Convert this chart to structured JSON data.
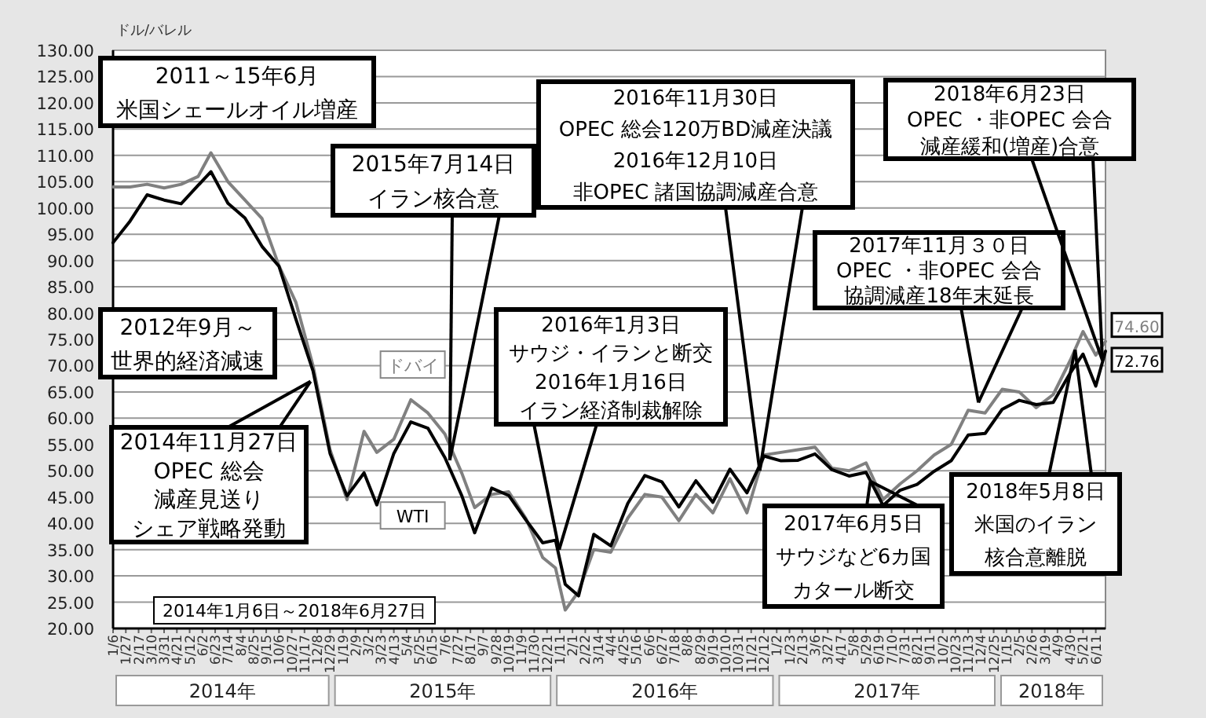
{
  "chart_data": {
    "type": "line",
    "ylabel": "ドル/バレル",
    "grid": "y",
    "x": [
      "2014-01-06",
      "2014-02-03",
      "2014-03-03",
      "2014-03-31",
      "2014-04-28",
      "2014-05-26",
      "2014-06-16",
      "2014-07-14",
      "2014-08-11",
      "2014-09-08",
      "2014-10-06",
      "2014-11-03",
      "2014-12-01",
      "2014-12-29",
      "2015-01-26",
      "2015-02-23",
      "2015-03-16",
      "2015-04-13",
      "2015-05-11",
      "2015-06-08",
      "2015-07-06",
      "2015-08-03",
      "2015-08-24",
      "2015-09-21",
      "2015-10-19",
      "2015-11-16",
      "2015-12-14",
      "2016-01-04",
      "2016-01-20",
      "2016-02-11",
      "2016-03-07",
      "2016-04-04",
      "2016-05-02",
      "2016-05-30",
      "2016-06-27",
      "2016-07-25",
      "2016-08-22",
      "2016-09-19",
      "2016-10-17",
      "2016-11-14",
      "2016-12-12",
      "2017-01-09",
      "2017-02-06",
      "2017-03-06",
      "2017-04-03",
      "2017-05-01",
      "2017-05-29",
      "2017-06-26",
      "2017-07-24",
      "2017-08-21",
      "2017-09-18",
      "2017-10-16",
      "2017-11-13",
      "2017-12-11",
      "2018-01-08",
      "2018-02-05",
      "2018-03-05",
      "2018-04-02",
      "2018-04-30",
      "2018-05-21",
      "2018-06-11",
      "2018-06-27"
    ],
    "series": [
      {
        "name": "ドバイ",
        "color": "#808080",
        "values": [
          104.0,
          104.0,
          104.5,
          103.8,
          104.5,
          106.0,
          110.5,
          105.0,
          101.5,
          98.0,
          89.0,
          82.0,
          70.0,
          54.0,
          44.5,
          57.5,
          53.5,
          56.0,
          63.5,
          61.0,
          57.0,
          49.5,
          43.0,
          45.5,
          46.0,
          41.0,
          33.5,
          31.5,
          23.5,
          27.0,
          35.0,
          34.5,
          41.0,
          45.5,
          45.0,
          40.5,
          45.5,
          42.0,
          48.5,
          42.0,
          53.0,
          53.5,
          54.0,
          54.5,
          50.5,
          50.0,
          51.5,
          44.5,
          47.5,
          50.0,
          53.0,
          55.0,
          61.5,
          61.0,
          65.5,
          65.0,
          62.0,
          64.5,
          71.0,
          76.5,
          72.0,
          74.6
        ],
        "value_labels": [
          null,
          null,
          null,
          null,
          null,
          null,
          null,
          null,
          null,
          null,
          null,
          null,
          null,
          null,
          null,
          null,
          null,
          null,
          null,
          null,
          null,
          null,
          null,
          null,
          null,
          null,
          null,
          null,
          null,
          null,
          null,
          null,
          null,
          null,
          null,
          null,
          null,
          null,
          null,
          null,
          null,
          null,
          null,
          null,
          null,
          null,
          null,
          null,
          null,
          null,
          null,
          null,
          null,
          null,
          null,
          null,
          null,
          null,
          null,
          null,
          null,
          "74.60"
        ]
      },
      {
        "name": "WTI",
        "color": "#000000",
        "values": [
          93.4,
          97.5,
          102.5,
          101.5,
          100.8,
          104.3,
          106.9,
          100.9,
          98.1,
          92.7,
          88.9,
          78.8,
          69.0,
          53.3,
          45.2,
          49.6,
          43.5,
          53.3,
          59.3,
          58.1,
          52.5,
          45.2,
          38.2,
          46.7,
          45.3,
          40.7,
          36.3,
          36.8,
          28.4,
          26.2,
          37.9,
          35.7,
          43.8,
          49.1,
          47.9,
          43.1,
          48.1,
          44.0,
          50.3,
          45.8,
          52.8,
          51.9,
          52.0,
          53.2,
          50.2,
          49.0,
          49.7,
          43.4,
          46.3,
          47.4,
          49.9,
          51.9,
          56.8,
          57.1,
          61.7,
          63.4,
          62.6,
          63.0,
          68.6,
          72.2,
          66.1,
          72.76
        ],
        "value_labels": [
          null,
          null,
          null,
          null,
          null,
          null,
          null,
          null,
          null,
          null,
          null,
          null,
          null,
          null,
          null,
          null,
          null,
          null,
          null,
          null,
          null,
          null,
          null,
          null,
          null,
          null,
          null,
          null,
          null,
          null,
          null,
          null,
          null,
          null,
          null,
          null,
          null,
          null,
          null,
          null,
          null,
          null,
          null,
          null,
          null,
          null,
          null,
          null,
          null,
          null,
          null,
          null,
          null,
          null,
          null,
          null,
          null,
          null,
          null,
          null,
          null,
          "72.76"
        ]
      }
    ],
    "xlim": [
      "2014-01-06",
      "2018-06-27"
    ],
    "ylim": [
      20,
      130
    ],
    "yticks": [
      {
        "value": 20,
        "label": "20.00"
      },
      {
        "value": 25,
        "label": "25.00"
      },
      {
        "value": 30,
        "label": "30.00"
      },
      {
        "value": 35,
        "label": "35.00"
      },
      {
        "value": 40,
        "label": "40.00"
      },
      {
        "value": 45,
        "label": "45.00"
      },
      {
        "value": 50,
        "label": "50.00"
      },
      {
        "value": 55,
        "label": "55.00"
      },
      {
        "value": 60,
        "label": "60.00"
      },
      {
        "value": 65,
        "label": "65.00"
      },
      {
        "value": 70,
        "label": "70.00"
      },
      {
        "value": 75,
        "label": "75.00"
      },
      {
        "value": 80,
        "label": "80.00"
      },
      {
        "value": 85,
        "label": "85.00"
      },
      {
        "value": 90,
        "label": "90.00"
      },
      {
        "value": 95,
        "label": "95.00"
      },
      {
        "value": 100,
        "label": "100.00"
      },
      {
        "value": 105,
        "label": "105.00"
      },
      {
        "value": 110,
        "label": "110.00"
      },
      {
        "value": 115,
        "label": "115.00"
      },
      {
        "value": 120,
        "label": "120.00"
      },
      {
        "value": 125,
        "label": "125.00"
      },
      {
        "value": 130,
        "label": "130.00"
      }
    ],
    "xticks": [
      {
        "value": "2014-01-06",
        "label": "1/6"
      },
      {
        "value": "2014-01-27",
        "label": "1/27"
      },
      {
        "value": "2014-02-17",
        "label": "2/17"
      },
      {
        "value": "2014-03-10",
        "label": "3/10"
      },
      {
        "value": "2014-03-31",
        "label": "3/31"
      },
      {
        "value": "2014-04-21",
        "label": "4/21"
      },
      {
        "value": "2014-05-12",
        "label": "5/12"
      },
      {
        "value": "2014-06-02",
        "label": "6/2"
      },
      {
        "value": "2014-06-23",
        "label": "6/23"
      },
      {
        "value": "2014-07-14",
        "label": "7/14"
      },
      {
        "value": "2014-08-04",
        "label": "8/4"
      },
      {
        "value": "2014-08-25",
        "label": "8/25"
      },
      {
        "value": "2014-09-15",
        "label": "9/15"
      },
      {
        "value": "2014-10-06",
        "label": "10/6"
      },
      {
        "value": "2014-10-27",
        "label": "10/27"
      },
      {
        "value": "2014-11-17",
        "label": "11/17"
      },
      {
        "value": "2014-12-08",
        "label": "12/8"
      },
      {
        "value": "2014-12-29",
        "label": "12/29"
      },
      {
        "value": "2015-01-19",
        "label": "1/19"
      },
      {
        "value": "2015-02-09",
        "label": "2/9"
      },
      {
        "value": "2015-03-02",
        "label": "3/2"
      },
      {
        "value": "2015-03-23",
        "label": "3/23"
      },
      {
        "value": "2015-04-13",
        "label": "4/13"
      },
      {
        "value": "2015-05-04",
        "label": "5/4"
      },
      {
        "value": "2015-05-25",
        "label": "5/25"
      },
      {
        "value": "2015-06-15",
        "label": "6/15"
      },
      {
        "value": "2015-07-06",
        "label": "7/6"
      },
      {
        "value": "2015-07-27",
        "label": "7/27"
      },
      {
        "value": "2015-08-17",
        "label": "8/17"
      },
      {
        "value": "2015-09-07",
        "label": "9/7"
      },
      {
        "value": "2015-09-28",
        "label": "9/28"
      },
      {
        "value": "2015-10-19",
        "label": "10/19"
      },
      {
        "value": "2015-11-09",
        "label": "11/9"
      },
      {
        "value": "2015-11-30",
        "label": "11/30"
      },
      {
        "value": "2015-12-21",
        "label": "12/21"
      },
      {
        "value": "2016-01-11",
        "label": "1/11"
      },
      {
        "value": "2016-02-01",
        "label": "2/1"
      },
      {
        "value": "2016-02-22",
        "label": "2/22"
      },
      {
        "value": "2016-03-14",
        "label": "3/14"
      },
      {
        "value": "2016-04-04",
        "label": "4/4"
      },
      {
        "value": "2016-04-25",
        "label": "4/25"
      },
      {
        "value": "2016-05-16",
        "label": "5/16"
      },
      {
        "value": "2016-06-06",
        "label": "6/6"
      },
      {
        "value": "2016-06-27",
        "label": "6/27"
      },
      {
        "value": "2016-07-18",
        "label": "7/18"
      },
      {
        "value": "2016-08-08",
        "label": "8/8"
      },
      {
        "value": "2016-08-29",
        "label": "8/29"
      },
      {
        "value": "2016-09-19",
        "label": "9/19"
      },
      {
        "value": "2016-10-10",
        "label": "10/10"
      },
      {
        "value": "2016-10-31",
        "label": "10/31"
      },
      {
        "value": "2016-11-21",
        "label": "11/21"
      },
      {
        "value": "2016-12-12",
        "label": "12/12"
      },
      {
        "value": "2017-01-02",
        "label": "1/2"
      },
      {
        "value": "2017-01-23",
        "label": "1/23"
      },
      {
        "value": "2017-02-13",
        "label": "2/13"
      },
      {
        "value": "2017-03-06",
        "label": "3/6"
      },
      {
        "value": "2017-03-27",
        "label": "3/27"
      },
      {
        "value": "2017-04-17",
        "label": "4/17"
      },
      {
        "value": "2017-05-08",
        "label": "5/8"
      },
      {
        "value": "2017-05-29",
        "label": "5/29"
      },
      {
        "value": "2017-06-19",
        "label": "6/19"
      },
      {
        "value": "2017-07-10",
        "label": "7/10"
      },
      {
        "value": "2017-07-31",
        "label": "7/31"
      },
      {
        "value": "2017-08-21",
        "label": "8/21"
      },
      {
        "value": "2017-09-11",
        "label": "9/11"
      },
      {
        "value": "2017-10-02",
        "label": "10/2"
      },
      {
        "value": "2017-10-23",
        "label": "10/23"
      },
      {
        "value": "2017-11-13",
        "label": "11/13"
      },
      {
        "value": "2017-12-04",
        "label": "12/4"
      },
      {
        "value": "2017-12-25",
        "label": "12/25"
      },
      {
        "value": "2018-01-15",
        "label": "1/15"
      },
      {
        "value": "2018-02-05",
        "label": "2/5"
      },
      {
        "value": "2018-02-26",
        "label": "2/26"
      },
      {
        "value": "2018-03-19",
        "label": "3/19"
      },
      {
        "value": "2018-04-09",
        "label": "4/9"
      },
      {
        "value": "2018-04-30",
        "label": "4/30"
      },
      {
        "value": "2018-05-21",
        "label": "5/21"
      },
      {
        "value": "2018-06-11",
        "label": "6/11"
      }
    ],
    "annotations": [
      "2011～15年6月米国シェールオイル増産",
      "2012年9月～世界的経済減速",
      {
        "text": "2014年11月27日OPEC 総会減産見送りシェア戦略発動",
        "x": "2014-11-27",
        "y": 67
      },
      {
        "text": "2015年7月14日イラン核合意",
        "x": "2015-07-14",
        "y": 52
      },
      {
        "text": "2016年1月3日サウジ・イランと断交2016年1月16日イラン経済制裁解除",
        "x": "2016-01-10",
        "y": 35
      },
      {
        "text": "2016年11月30日OPEC 総会120万BD減産決議2016年12月10日非OPEC 諸国協調減産合意",
        "x": "2016-12-05",
        "y": 50
      },
      {
        "text": "2017年11月３０日OPEC ・非OPEC 会合協調減産18年末延長",
        "x": "2017-11-30",
        "y": 63
      },
      {
        "text": "2018年6月23日OPEC ・非OPEC 会合減産緩和(増産)合意",
        "x": "2018-06-22",
        "y": 71
      },
      {
        "text": "2017年6月5日サウジなど6カ国カタール断交",
        "x": "2017-06-05",
        "y": 48
      },
      {
        "text": "2018年5月8日米国のイラン核合意離脱",
        "x": "2018-05-08",
        "y": 73
      },
      "2014年1月6日～2018年6月27日",
      "2014年",
      "2015年",
      "2016年",
      "2017年",
      "2018年"
    ]
  }
}
